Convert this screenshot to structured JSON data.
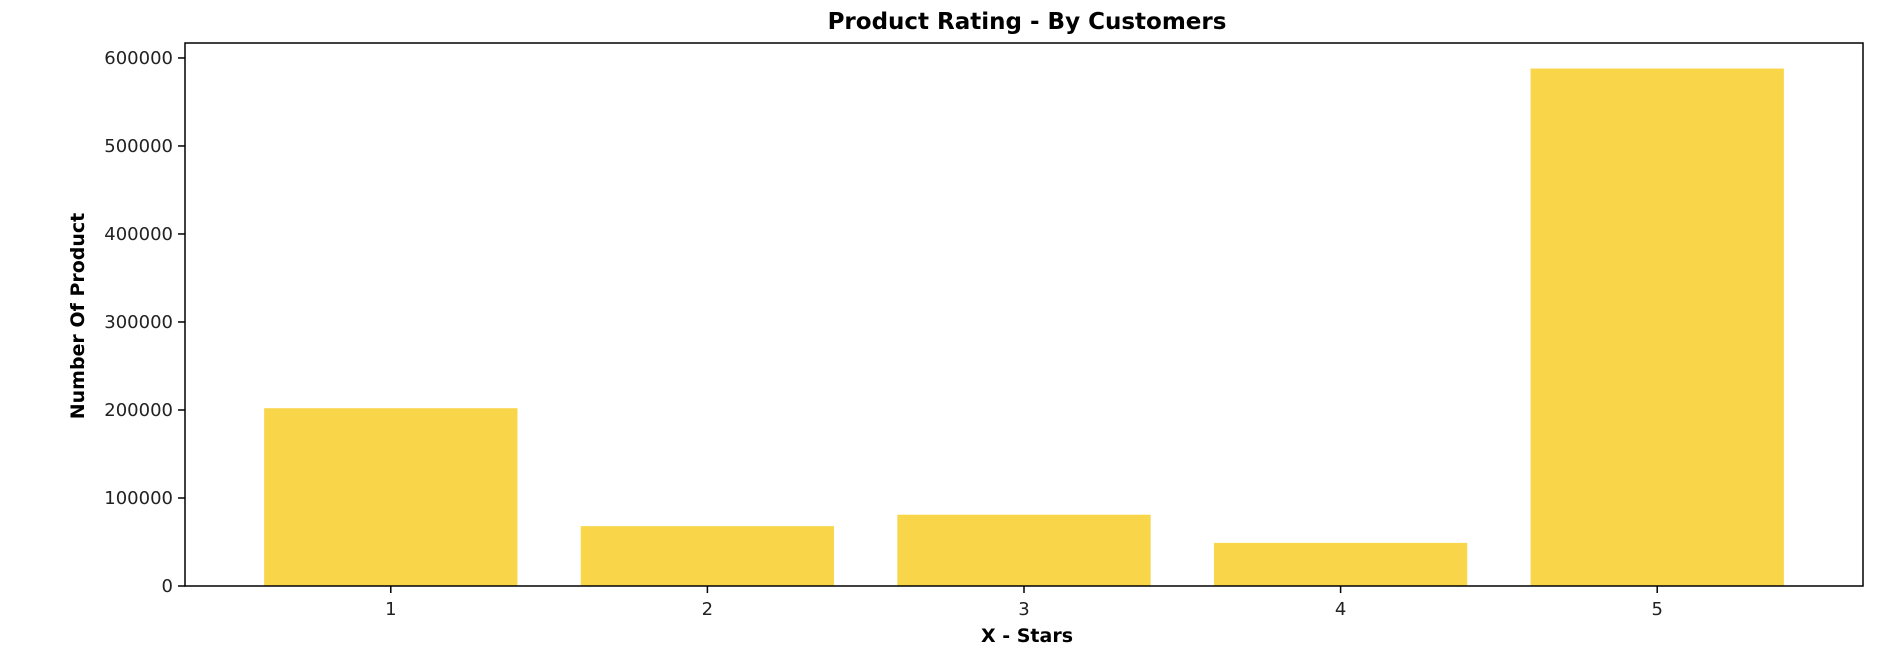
{
  "chart_data": {
    "type": "bar",
    "title": "Product Rating - By Customers",
    "xlabel": "X - Stars",
    "ylabel": "Number Of Product",
    "categories": [
      "1",
      "2",
      "3",
      "4",
      "5"
    ],
    "values": [
      202000,
      68000,
      81000,
      49000,
      588000
    ],
    "ylim": [
      0,
      617000
    ],
    "yticks": [
      0,
      100000,
      200000,
      300000,
      400000,
      500000,
      600000
    ],
    "ytick_labels": [
      "0",
      "100000",
      "200000",
      "300000",
      "400000",
      "500000",
      "600000"
    ],
    "grid": false,
    "legend": "none",
    "colors": {
      "bar": "#f8d549",
      "axis": "#000000",
      "text": "#222222"
    }
  }
}
